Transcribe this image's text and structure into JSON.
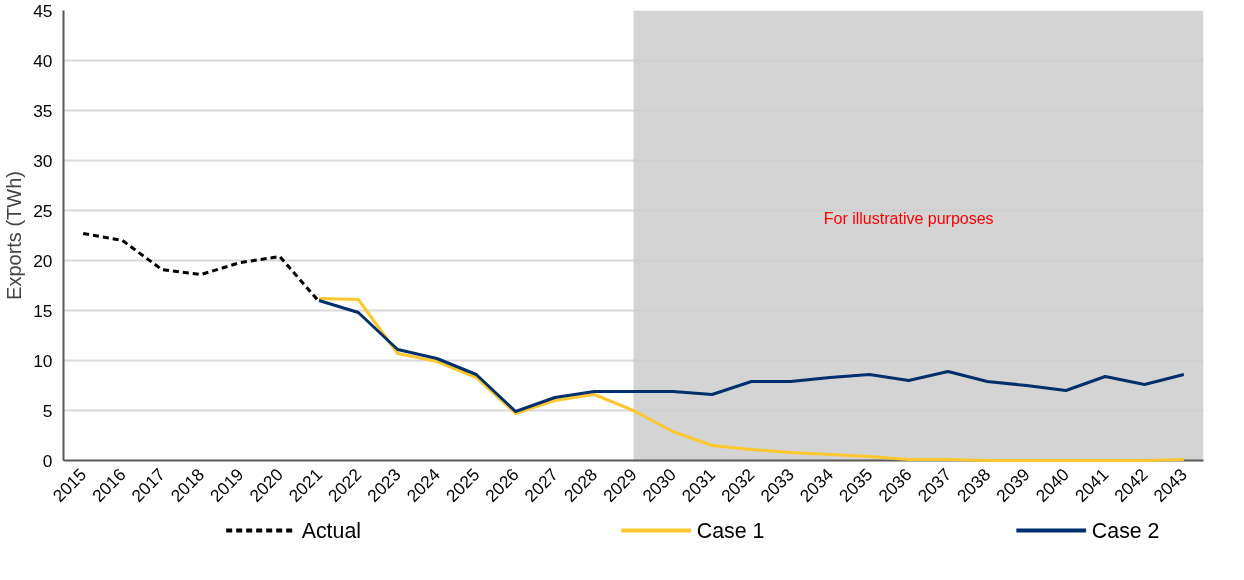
{
  "chart_data": {
    "type": "line",
    "ylabel": "Exports (TWh)",
    "categories": [
      "2015",
      "2016",
      "2017",
      "2018",
      "2019",
      "2020",
      "2021",
      "2022",
      "2023",
      "2024",
      "2025",
      "2026",
      "2027",
      "2028",
      "2029",
      "2030",
      "2031",
      "2032",
      "2033",
      "2034",
      "2035",
      "2036",
      "2037",
      "2038",
      "2039",
      "2040",
      "2041",
      "2042",
      "2043"
    ],
    "series": [
      {
        "name": "Actual",
        "color": "#000000",
        "line_style": "dashed",
        "values": [
          22.7,
          22.0,
          19.1,
          18.6,
          19.8,
          20.4,
          15.9,
          null,
          null,
          null,
          null,
          null,
          null,
          null,
          null,
          null,
          null,
          null,
          null,
          null,
          null,
          null,
          null,
          null,
          null,
          null,
          null,
          null,
          null
        ]
      },
      {
        "name": "Case 1",
        "color": "#fdc82f",
        "line_style": "solid",
        "values": [
          null,
          null,
          null,
          null,
          null,
          null,
          16.2,
          16.1,
          10.7,
          9.9,
          8.3,
          4.7,
          6.0,
          6.6,
          5.0,
          2.9,
          1.5,
          1.1,
          0.8,
          0.6,
          0.4,
          0.1,
          0.1,
          0,
          0,
          0,
          0,
          0,
          0.1
        ]
      },
      {
        "name": "Case 2",
        "color": "#002f6c",
        "line_style": "solid",
        "values": [
          null,
          null,
          null,
          null,
          null,
          null,
          16.0,
          14.8,
          11.1,
          10.2,
          8.6,
          4.9,
          6.3,
          6.9,
          6.9,
          6.9,
          6.6,
          7.9,
          7.9,
          8.3,
          8.6,
          8.0,
          8.9,
          7.9,
          7.5,
          7.0,
          8.4,
          7.6,
          8.6
        ]
      }
    ],
    "ylim": [
      0,
      45
    ],
    "yticks": [
      0,
      5,
      10,
      15,
      20,
      25,
      30,
      35,
      40,
      45
    ],
    "grid": "y",
    "legend": "bottom",
    "bands": [
      {
        "axis": "x",
        "from": "2029",
        "to": "2043",
        "color": "#cccccc"
      }
    ],
    "annotations": [
      "For illustrative purposes"
    ]
  }
}
